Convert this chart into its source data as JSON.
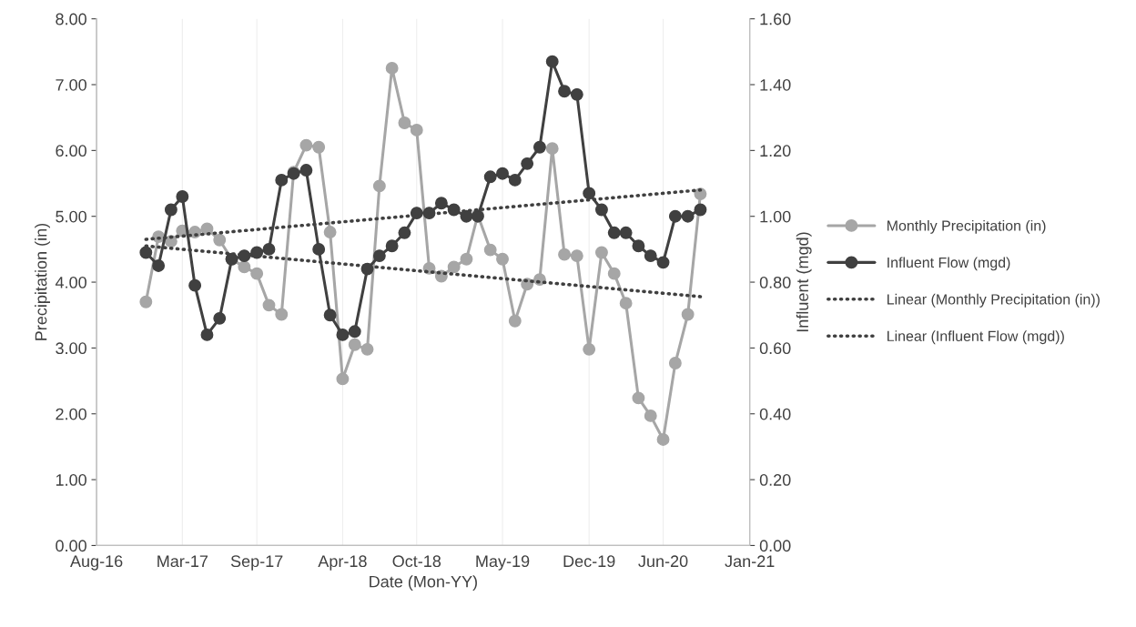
{
  "chart_data": {
    "type": "line",
    "xlabel": "Date (Mon-YY)",
    "ylabel": "Precipitation (in)",
    "y2label": "Influent (mgd)",
    "x": [
      "2016-12",
      "2017-01",
      "2017-02",
      "2017-03",
      "2017-04",
      "2017-05",
      "2017-06",
      "2017-07",
      "2017-08",
      "2017-09",
      "2017-10",
      "2017-11",
      "2017-12",
      "2018-01",
      "2018-02",
      "2018-03",
      "2018-04",
      "2018-05",
      "2018-06",
      "2018-07",
      "2018-08",
      "2018-09",
      "2018-10",
      "2018-11",
      "2018-12",
      "2019-01",
      "2019-02",
      "2019-03",
      "2019-04",
      "2019-05",
      "2019-06",
      "2019-07",
      "2019-08",
      "2019-09",
      "2019-10",
      "2019-11",
      "2019-12",
      "2020-01",
      "2020-02",
      "2020-03",
      "2020-04",
      "2020-05",
      "2020-06",
      "2020-07",
      "2020-08",
      "2020-09"
    ],
    "series": [
      {
        "name": "Monthly Precipitation (in)",
        "color": "#a6a6a6",
        "values": [
          3.7,
          4.69,
          4.62,
          4.78,
          4.76,
          4.81,
          4.64,
          4.35,
          4.23,
          4.13,
          3.65,
          3.51,
          5.67,
          6.08,
          6.05,
          4.76,
          2.53,
          3.05,
          2.98,
          5.46,
          7.25,
          6.42,
          6.31,
          4.21,
          4.09,
          4.23,
          4.35,
          5.02,
          4.49,
          4.35,
          3.41,
          3.97,
          4.04,
          6.03,
          4.42,
          4.4,
          2.98,
          4.45,
          4.13,
          3.68,
          2.24,
          1.97,
          1.61,
          2.77,
          3.51,
          5.34
        ]
      },
      {
        "name": "Influent Flow (mgd)",
        "color": "#404040",
        "axis": "y2",
        "values": [
          0.89,
          0.85,
          1.02,
          1.06,
          0.79,
          0.64,
          0.69,
          0.87,
          0.88,
          0.89,
          0.9,
          1.11,
          1.13,
          1.14,
          0.9,
          0.7,
          0.64,
          0.65,
          0.84,
          0.88,
          0.91,
          0.95,
          1.01,
          1.01,
          1.04,
          1.02,
          1.0,
          1.0,
          1.12,
          1.13,
          1.11,
          1.16,
          1.21,
          1.47,
          1.38,
          1.37,
          1.07,
          1.02,
          0.95,
          0.95,
          0.91,
          0.88,
          0.86,
          1.0,
          1.0,
          1.02
        ]
      },
      {
        "name": "Linear (Monthly Precipitation (in))",
        "color": "#404040",
        "marker": "none",
        "line_style": "dotted",
        "x": [
          "2016-12",
          "2020-09"
        ],
        "values": [
          4.55,
          3.78
        ]
      },
      {
        "name": "Linear (Influent Flow (mgd))",
        "color": "#404040",
        "marker": "none",
        "line_style": "dotted",
        "axis": "y2",
        "x": [
          "2016-12",
          "2020-09"
        ],
        "values": [
          0.93,
          1.08
        ]
      }
    ],
    "marker": "circle",
    "line_style": "solid",
    "grid": "x",
    "legend": "right",
    "xlim": [
      "2016-08-01",
      "2021-01-01"
    ],
    "xticks": [
      {
        "value": "2016-08-01",
        "label": "Aug-16"
      },
      {
        "value": "2017-03-01",
        "label": "Mar-17"
      },
      {
        "value": "2017-09-01",
        "label": "Sep-17"
      },
      {
        "value": "2018-04-01",
        "label": "Apr-18"
      },
      {
        "value": "2018-10-01",
        "label": "Oct-18"
      },
      {
        "value": "2019-05-01",
        "label": "May-19"
      },
      {
        "value": "2019-12-01",
        "label": "Dec-19"
      },
      {
        "value": "2020-06-01",
        "label": "Jun-20"
      },
      {
        "value": "2021-01-01",
        "label": "Jan-21"
      }
    ],
    "ylim": [
      0,
      8
    ],
    "yticks": [
      {
        "value": 0,
        "label": "0.00"
      },
      {
        "value": 1,
        "label": "1.00"
      },
      {
        "value": 2,
        "label": "2.00"
      },
      {
        "value": 3,
        "label": "3.00"
      },
      {
        "value": 4,
        "label": "4.00"
      },
      {
        "value": 5,
        "label": "5.00"
      },
      {
        "value": 6,
        "label": "6.00"
      },
      {
        "value": 7,
        "label": "7.00"
      },
      {
        "value": 8,
        "label": "8.00"
      }
    ],
    "y2lim": [
      0,
      1.6
    ],
    "y2ticks": [
      {
        "value": 0,
        "label": "0.00"
      },
      {
        "value": 0.2,
        "label": "0.20"
      },
      {
        "value": 0.4,
        "label": "0.40"
      },
      {
        "value": 0.6,
        "label": "0.60"
      },
      {
        "value": 0.8,
        "label": "0.80"
      },
      {
        "value": 1.0,
        "label": "1.00"
      },
      {
        "value": 1.2,
        "label": "1.20"
      },
      {
        "value": 1.4,
        "label": "1.40"
      },
      {
        "value": 1.6,
        "label": "1.60"
      }
    ]
  }
}
